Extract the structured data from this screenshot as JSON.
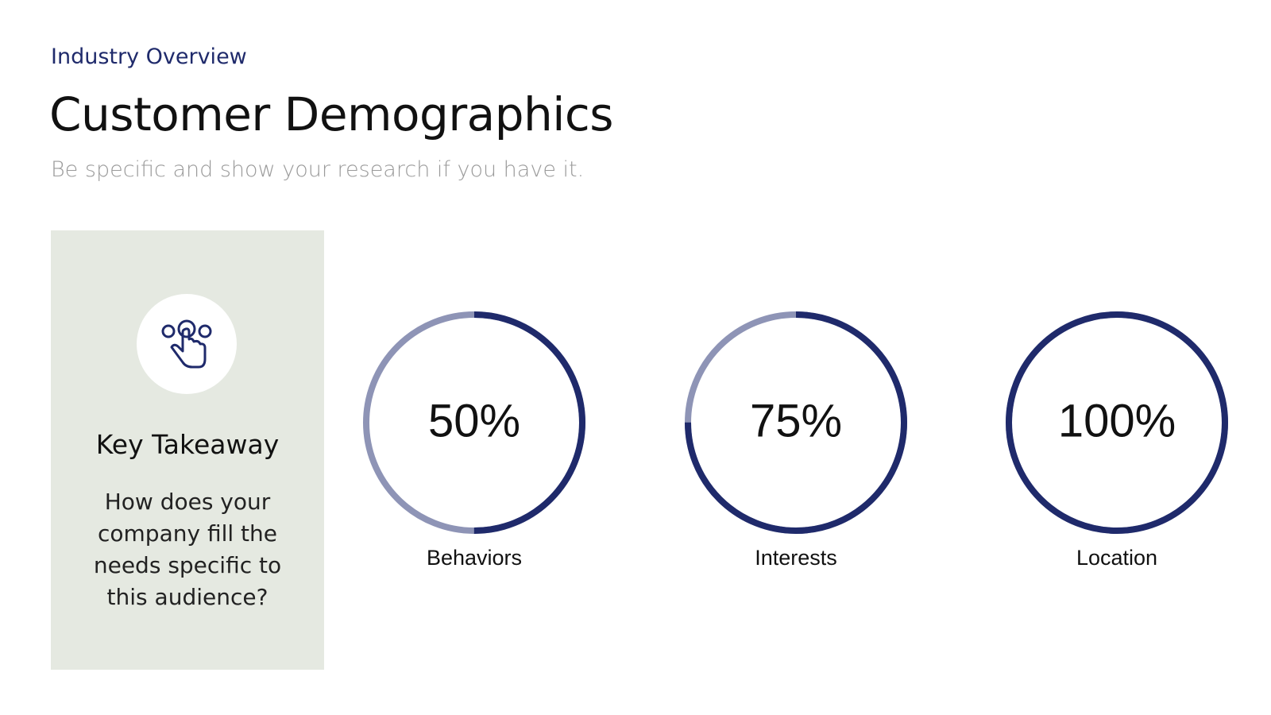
{
  "header": {
    "eyebrow": "Industry Overview",
    "title": "Customer Demographics",
    "subtitle": "Be specific and show your research if you have it."
  },
  "takeaway": {
    "title": "Key Takeaway",
    "text": "How does your company fill the needs specific to this audience?"
  },
  "chart_data": {
    "type": "progress-ring",
    "color": "#1f2a6b",
    "track_color": "#8e94b6",
    "categories": [
      "Behaviors",
      "Interests",
      "Location"
    ],
    "values": [
      50,
      75,
      100
    ],
    "value_labels": [
      "50%",
      "75%",
      "100%"
    ]
  }
}
